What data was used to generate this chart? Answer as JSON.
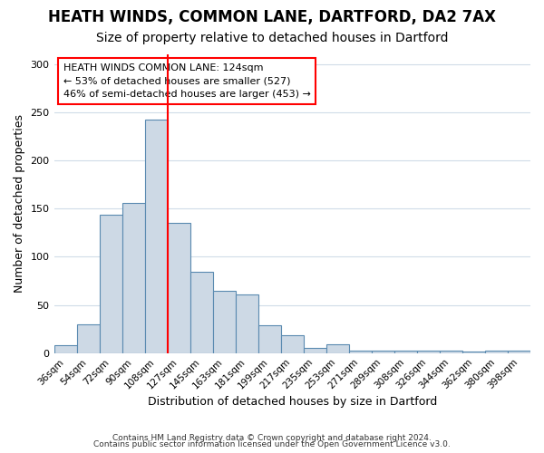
{
  "title1": "HEATH WINDS, COMMON LANE, DARTFORD, DA2 7AX",
  "title2": "Size of property relative to detached houses in Dartford",
  "xlabel": "Distribution of detached houses by size in Dartford",
  "ylabel": "Number of detached properties",
  "categories": [
    "36sqm",
    "54sqm",
    "72sqm",
    "90sqm",
    "108sqm",
    "127sqm",
    "145sqm",
    "163sqm",
    "181sqm",
    "199sqm",
    "217sqm",
    "235sqm",
    "253sqm",
    "271sqm",
    "289sqm",
    "308sqm",
    "326sqm",
    "344sqm",
    "362sqm",
    "380sqm",
    "398sqm"
  ],
  "values": [
    8,
    30,
    144,
    156,
    242,
    135,
    84,
    65,
    61,
    29,
    19,
    5,
    9,
    3,
    3,
    3,
    3,
    3,
    2,
    3,
    3
  ],
  "bar_color": "#cdd9e5",
  "bar_edge_color": "#5a8ab0",
  "red_line_x": 4.5,
  "annotation_title": "HEATH WINDS COMMON LANE: 124sqm",
  "annotation_line1": "← 53% of detached houses are smaller (527)",
  "annotation_line2": "46% of semi-detached houses are larger (453) →",
  "ylim": [
    0,
    310
  ],
  "yticks": [
    0,
    50,
    100,
    150,
    200,
    250,
    300
  ],
  "footer1": "Contains HM Land Registry data © Crown copyright and database right 2024.",
  "footer2": "Contains public sector information licensed under the Open Government Licence v3.0.",
  "bg_color": "#ffffff",
  "grid_color": "#d0dce8",
  "title1_fontsize": 12,
  "title2_fontsize": 10
}
